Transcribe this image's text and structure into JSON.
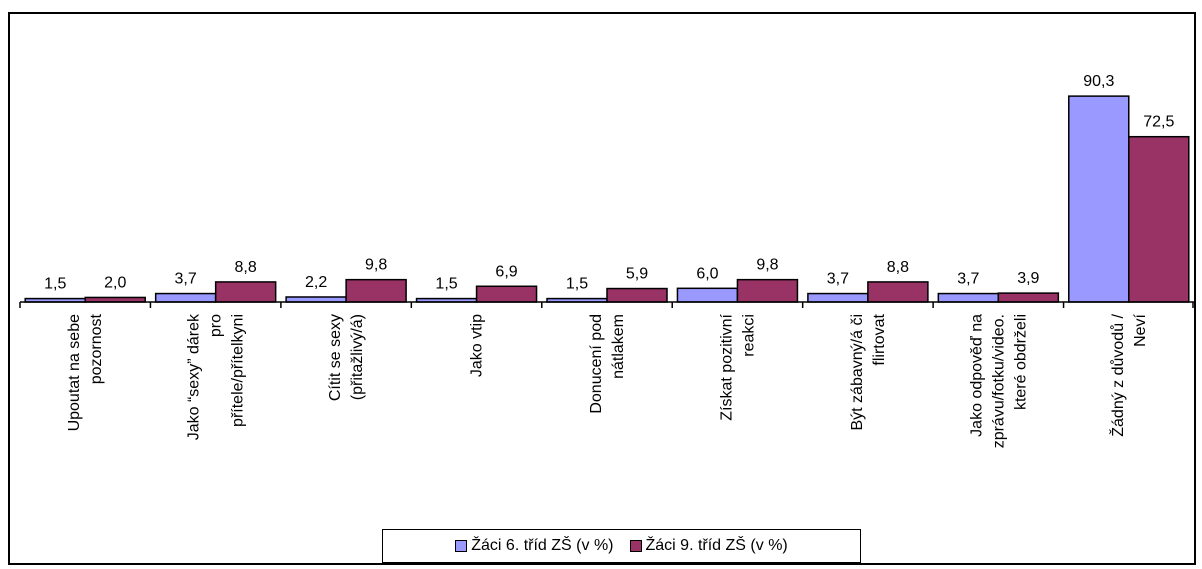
{
  "chart_data": {
    "type": "bar",
    "categories": [
      [
        "Upoutat na sebe",
        "pozornost"
      ],
      [
        "Jako “sexy” dárek",
        "pro",
        "přítele/přítelkyni"
      ],
      [
        "Cítit se sexy",
        "(přitažlivý/á)"
      ],
      [
        "Jako vtip"
      ],
      [
        "Donucení pod",
        "nátlakem"
      ],
      [
        "Získat pozitivní",
        "reakci"
      ],
      [
        "Být zábavný/á či",
        "flirtovat"
      ],
      [
        "Jako odpověď na",
        "zprávu/fotku/video.",
        "které obdrželi"
      ],
      [
        "Žádný z důvodů /",
        "Neví"
      ]
    ],
    "series": [
      {
        "name": "Žáci 6. tříd ZŠ (v %)",
        "values": [
          1.5,
          3.7,
          2.2,
          1.5,
          1.5,
          6.0,
          3.7,
          3.7,
          90.3
        ],
        "color": "#9999ff"
      },
      {
        "name": "Žáci 9. tříd ZŠ (v %)",
        "values": [
          2.0,
          8.8,
          9.8,
          6.9,
          5.9,
          9.8,
          8.8,
          3.9,
          72.5
        ],
        "color": "#993366"
      }
    ],
    "value_labels": [
      [
        "1,5",
        "3,7",
        "2,2",
        "1,5",
        "1,5",
        "6,0",
        "3,7",
        "3,7",
        "90,3"
      ],
      [
        "2,0",
        "8,8",
        "9,8",
        "6,9",
        "5,9",
        "9,8",
        "8,8",
        "3,9",
        "72,5"
      ]
    ],
    "ylim": [
      0,
      100
    ],
    "legend_position": "bottom",
    "grid": false
  }
}
